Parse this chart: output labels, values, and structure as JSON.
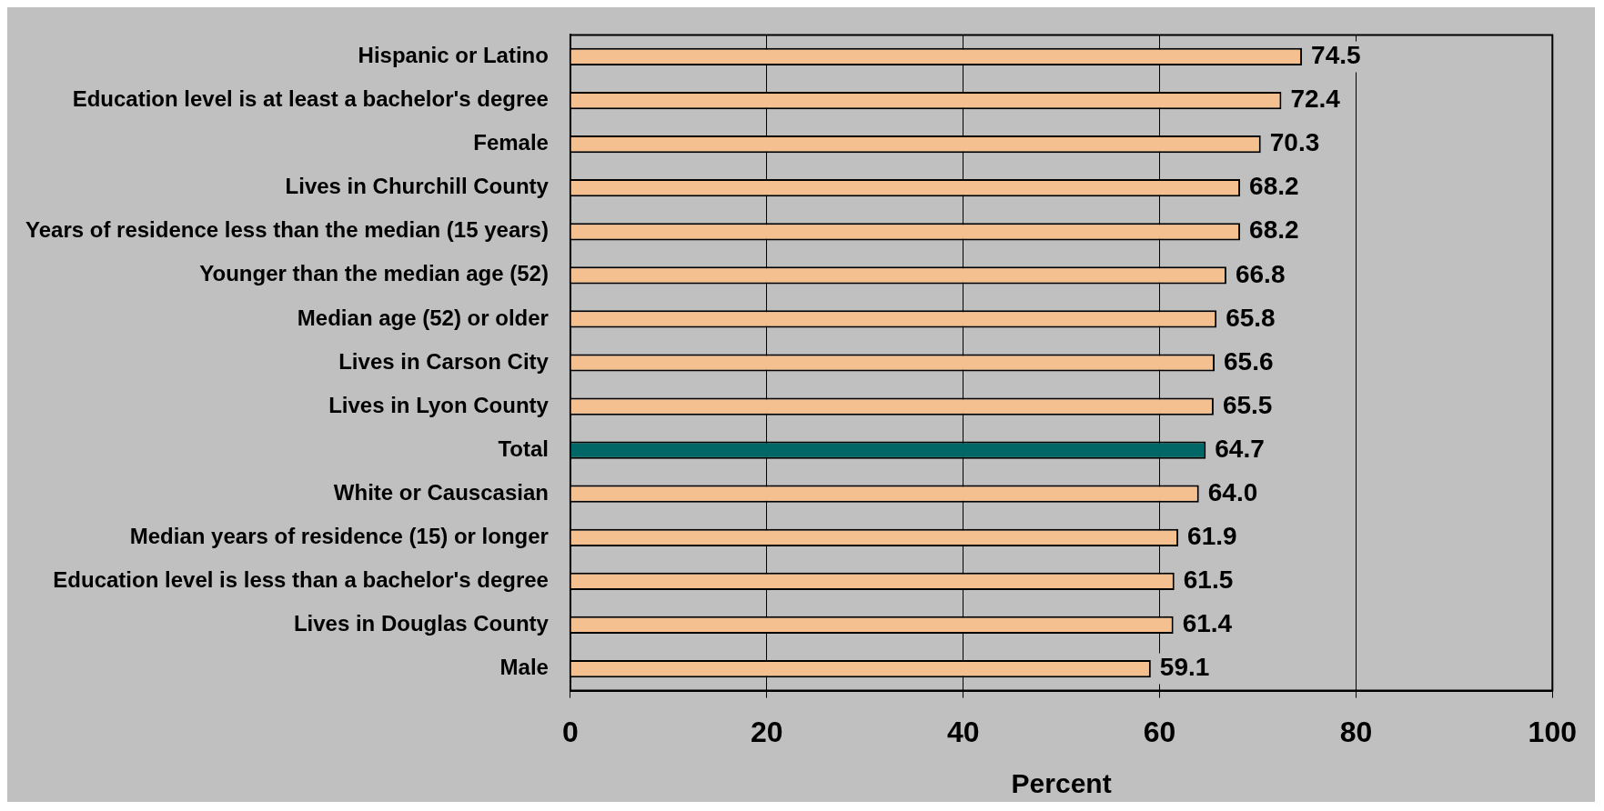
{
  "chart_data": {
    "type": "bar",
    "orientation": "horizontal",
    "xlabel": "Percent",
    "categories": [
      "Hispanic or Latino",
      "Education level is at least a bachelor's degree",
      "Female",
      "Lives in Churchill County",
      "Years of residence less than the median (15 years)",
      "Younger than the median age (52)",
      "Median age (52) or older",
      "Lives in Carson City",
      "Lives in Lyon County",
      "Total",
      "White or Causcasian",
      "Median years of residence (15) or longer",
      "Education level is less than a bachelor's degree",
      "Lives in Douglas County",
      "Male"
    ],
    "values": [
      74.5,
      72.4,
      70.3,
      68.2,
      68.2,
      66.8,
      65.8,
      65.6,
      65.5,
      64.7,
      64.0,
      61.9,
      61.5,
      61.4,
      59.1
    ],
    "value_labels": [
      "74.5",
      "72.4",
      "70.3",
      "68.2",
      "68.2",
      "66.8",
      "65.8",
      "65.6",
      "65.5",
      "64.7",
      "64.0",
      "61.9",
      "61.5",
      "61.4",
      "59.1"
    ],
    "colors": [
      "#f4c090",
      "#f4c090",
      "#f4c090",
      "#f4c090",
      "#f4c090",
      "#f4c090",
      "#f4c090",
      "#f4c090",
      "#f4c090",
      "#006666",
      "#f4c090",
      "#f4c090",
      "#f4c090",
      "#f4c090",
      "#f4c090"
    ],
    "xlim": [
      0,
      100
    ],
    "xticks": [
      0,
      20,
      40,
      60,
      80,
      100
    ],
    "grid": "x",
    "legend": false
  }
}
